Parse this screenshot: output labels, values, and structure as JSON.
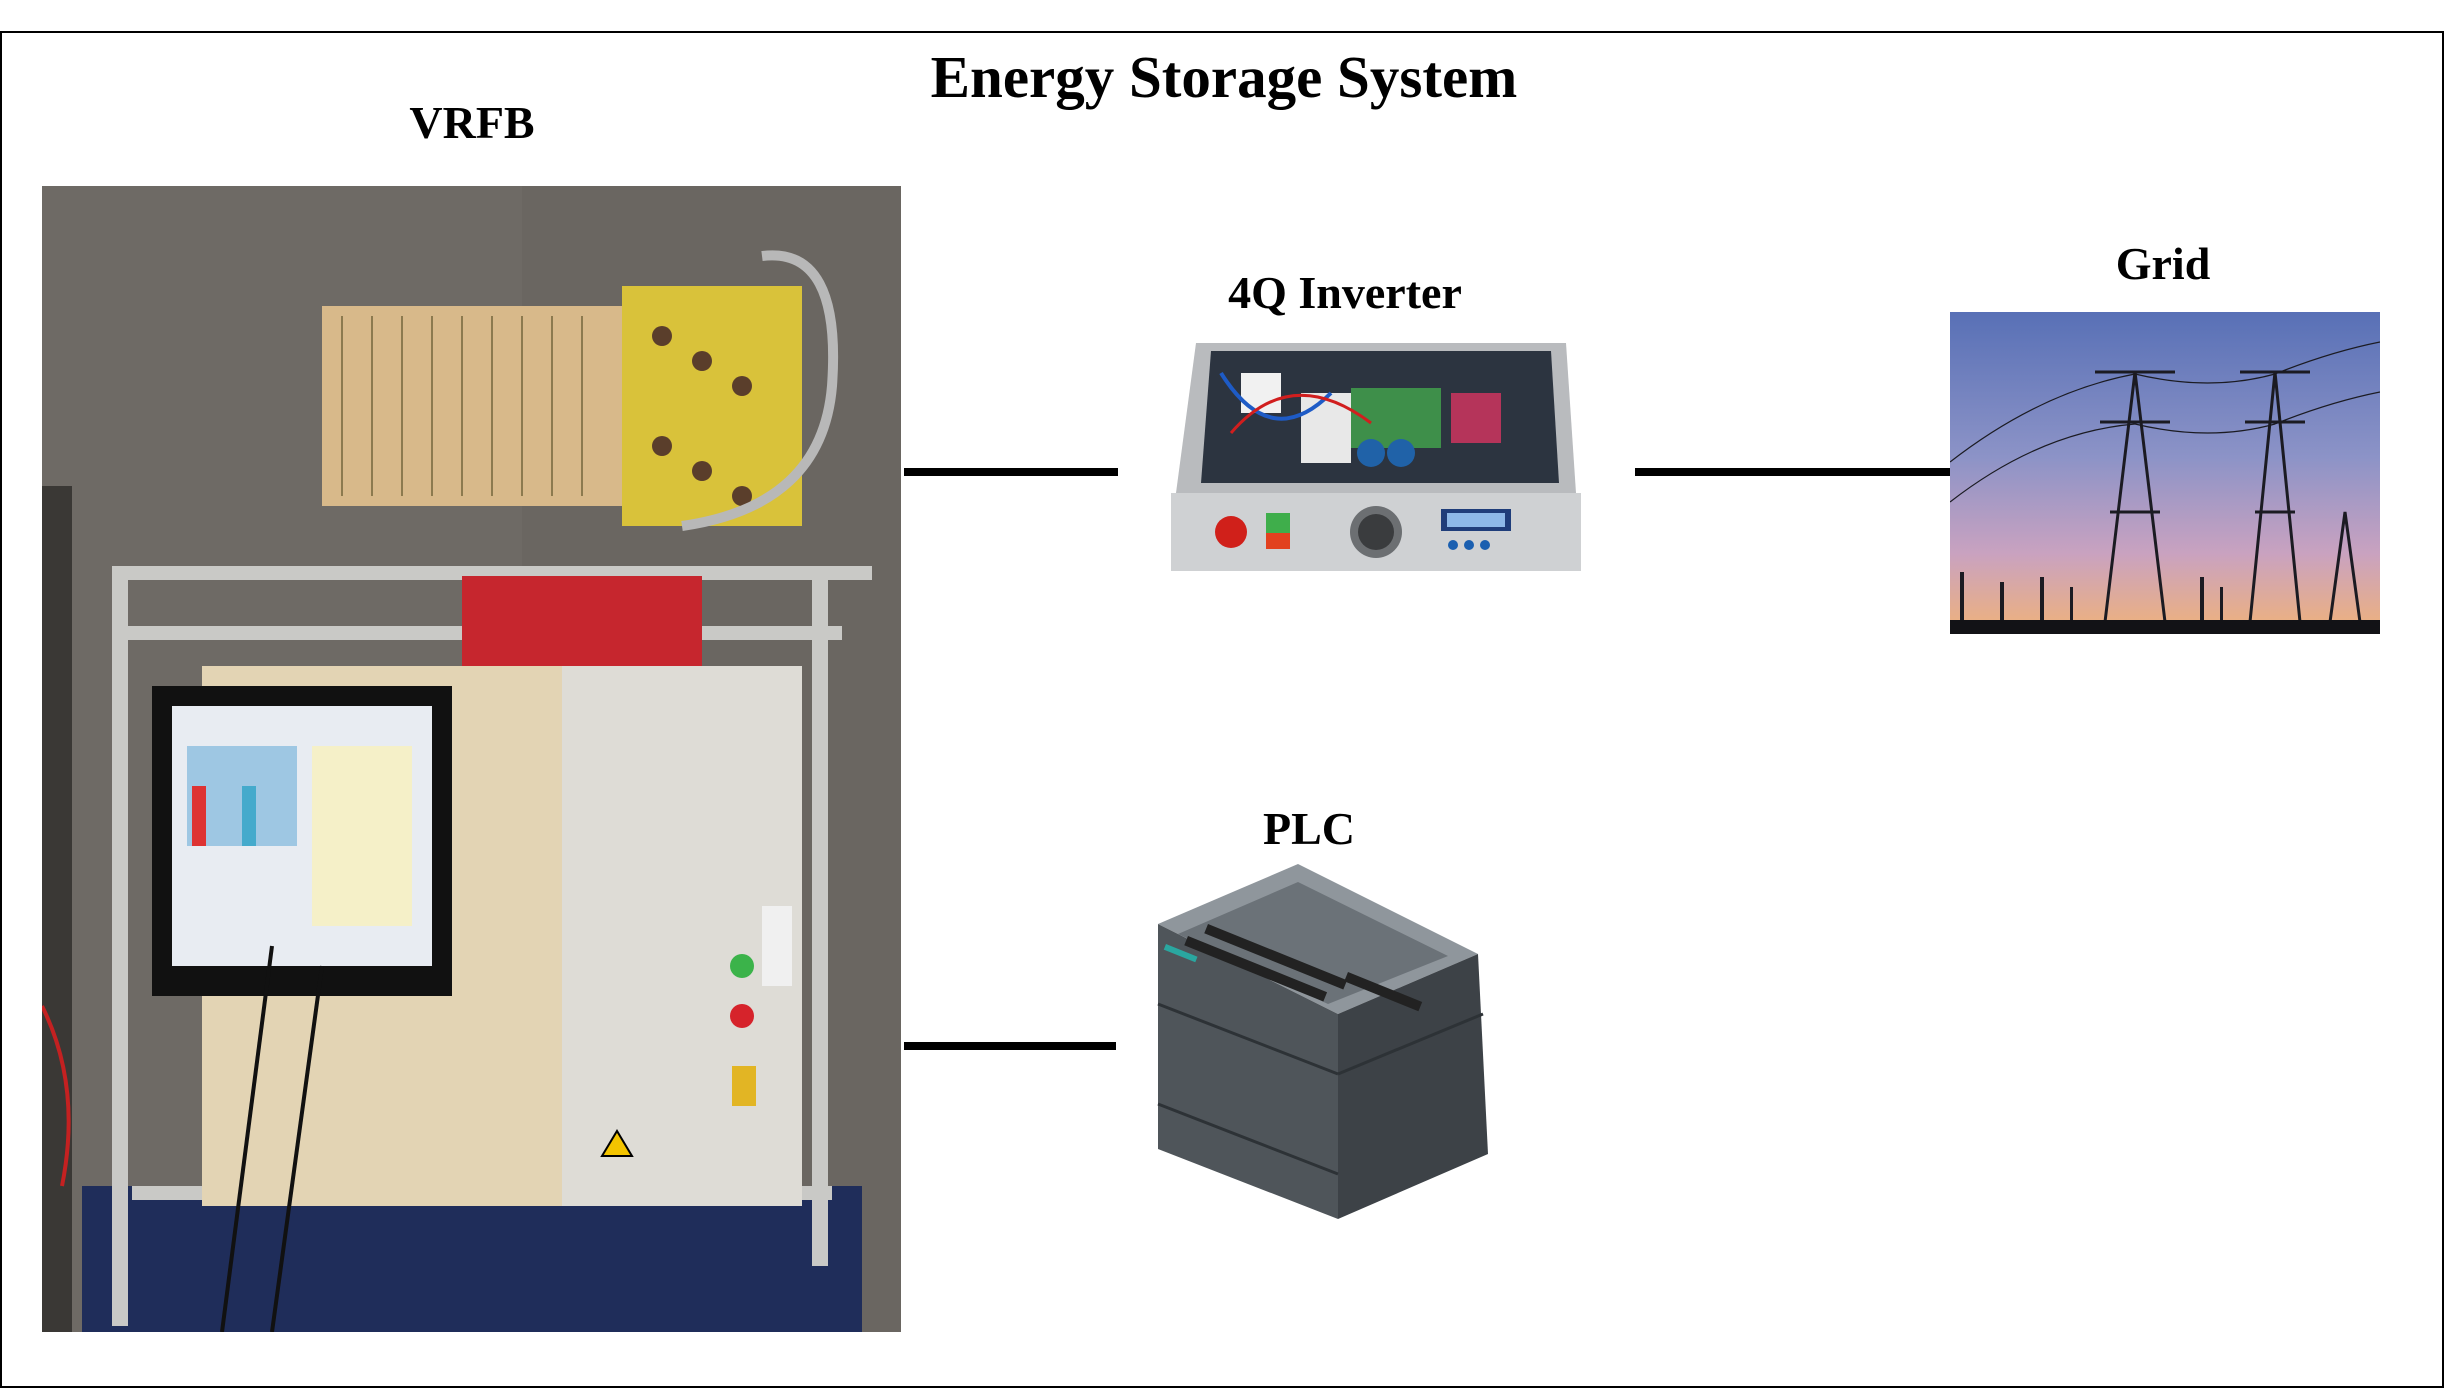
{
  "diagram": {
    "title": "Energy Storage System",
    "nodes": {
      "vrfb": {
        "label": "VRFB"
      },
      "inverter": {
        "label": "4Q Inverter"
      },
      "grid": {
        "label": "Grid"
      },
      "plc": {
        "label": "PLC"
      }
    },
    "connections": [
      {
        "from": "VRFB",
        "to": "4Q Inverter"
      },
      {
        "from": "4Q Inverter",
        "to": "Grid"
      },
      {
        "from": "VRFB",
        "to": "PLC"
      }
    ]
  }
}
